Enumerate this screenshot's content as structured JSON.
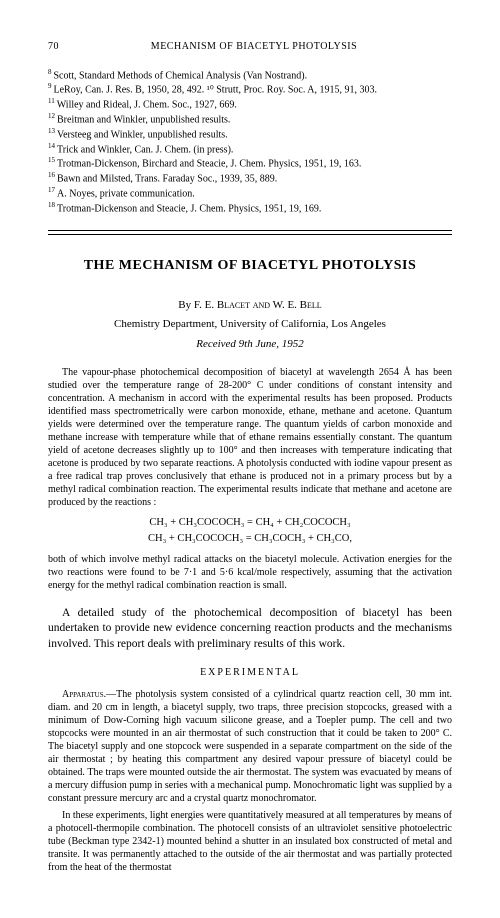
{
  "page_number": "70",
  "running_title": "MECHANISM OF BIACETYL PHOTOLYSIS",
  "references": [
    {
      "num": "8",
      "text": "Scott, Standard Methods of Chemical Analysis (Van Nostrand)."
    },
    {
      "num": "9",
      "text": "LeRoy, Can. J. Res. B, 1950, 28, 492.    ¹⁰ Strutt, Proc. Roy. Soc. A, 1915, 91, 303."
    },
    {
      "num": "11",
      "text": "Willey and Rideal, J. Chem. Soc., 1927, 669."
    },
    {
      "num": "12",
      "text": "Breitman and Winkler, unpublished results."
    },
    {
      "num": "13",
      "text": "Versteeg and Winkler, unpublished results."
    },
    {
      "num": "14",
      "text": "Trick and Winkler, Can. J. Chem. (in press)."
    },
    {
      "num": "15",
      "text": "Trotman-Dickenson, Birchard and Steacie, J. Chem. Physics, 1951, 19, 163."
    },
    {
      "num": "16",
      "text": "Bawn and Milsted, Trans. Faraday Soc., 1939, 35, 889."
    },
    {
      "num": "17",
      "text": "A. Noyes, private communication."
    },
    {
      "num": "18",
      "text": "Trotman-Dickenson and Steacie, J. Chem. Physics, 1951, 19, 169."
    }
  ],
  "article_title": "THE MECHANISM OF BIACETYL PHOTOLYSIS",
  "byline_prefix": "By",
  "authors": "F. E. Blacet and W. E. Bell",
  "affiliation": "Chemistry Department, University of California, Los Angeles",
  "received": "Received 9th June, 1952",
  "abstract": "The vapour-phase photochemical decomposition of biacetyl at wavelength 2654 Å has been studied over the temperature range of 28-200° C under conditions of constant intensity and concentration. A mechanism in accord with the experimental results has been proposed. Products identified mass spectrometrically were carbon monoxide, ethane, methane and acetone. Quantum yields were determined over the temperature range. The quantum yields of carbon monoxide and methane increase with temperature while that of ethane remains essentially constant. The quantum yield of acetone decreases slightly up to 100° and then increases with temperature indicating that acetone is produced by two separate reactions. A photolysis conducted with iodine vapour present as a free radical trap proves conclusively that ethane is produced not in a primary process but by a methyl radical combination reaction. The experimental results indicate that methane and acetone are produced by the reactions :",
  "reaction1": "CH₃ + CH₃COCOCH₃ = CH₄ + CH₂COCOCH₃",
  "reaction2": "CH₃ + CH₃COCOCH₃ = CH₃COCH₃ + CH₃CO,",
  "abstract_post": "both of which involve methyl radical attacks on the biacetyl molecule. Activation energies for the two reactions were found to be 7·1 and 5·6 kcal/mole respectively, assuming that the activation energy for the methyl radical combination reaction is small.",
  "intro_para": "A detailed study of the photochemical decomposition of biacetyl has been undertaken to provide new evidence concerning reaction products and the mechanisms involved. This report deals with preliminary results of this work.",
  "section_experimental": "EXPERIMENTAL",
  "apparatus_head": "Apparatus.—",
  "apparatus_text": "The photolysis system consisted of a cylindrical quartz reaction cell, 30 mm int. diam. and 20 cm in length, a biacetyl supply, two traps, three precision stopcocks, greased with a minimum of Dow-Corning high vacuum silicone grease, and a Toepler pump. The cell and two stopcocks were mounted in an air thermostat of such construction that it could be taken to 200° C. The biacetyl supply and one stopcock were suspended in a separate compartment on the side of the air thermostat ; by heating this compartment any desired vapour pressure of biacetyl could be obtained. The traps were mounted outside the air thermostat. The system was evacuated by means of a mercury diffusion pump in series with a mechanical pump. Monochromatic light was supplied by a constant pressure mercury arc and a crystal quartz monochromator.",
  "exp_para2": "In these experiments, light energies were quantitatively measured at all temperatures by means of a photocell-thermopile combination. The photocell consists of an ultraviolet sensitive photoelectric tube (Beckman type 2342-1) mounted behind a shutter in an insulated box constructed of metal and transite. It was permanently attached to the outside of the air thermostat and was partially protected from the heat of the thermostat"
}
